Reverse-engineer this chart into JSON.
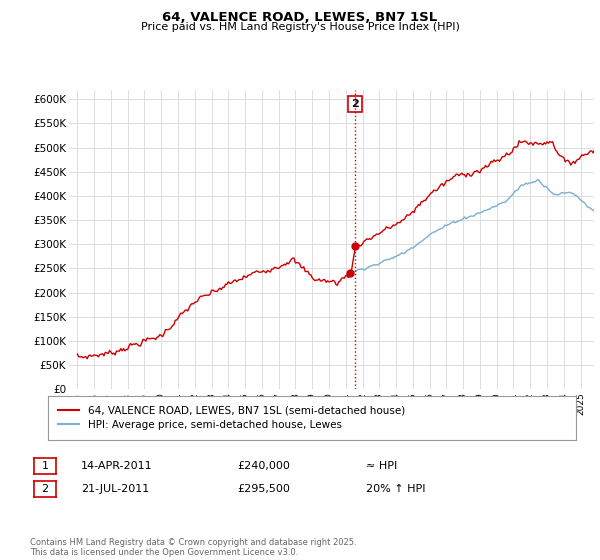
{
  "title": "64, VALENCE ROAD, LEWES, BN7 1SL",
  "subtitle": "Price paid vs. HM Land Registry's House Price Index (HPI)",
  "ylim": [
    0,
    620000
  ],
  "yticks": [
    0,
    50000,
    100000,
    150000,
    200000,
    250000,
    300000,
    350000,
    400000,
    450000,
    500000,
    550000,
    600000
  ],
  "ytick_labels": [
    "£0",
    "£50K",
    "£100K",
    "£150K",
    "£200K",
    "£250K",
    "£300K",
    "£350K",
    "£400K",
    "£450K",
    "£500K",
    "£550K",
    "£600K"
  ],
  "red_color": "#cc0000",
  "blue_color": "#7bafd4",
  "vline_color": "#cc0000",
  "transaction1_x": 2011.28,
  "transaction1_y": 240000,
  "transaction2_x": 2011.55,
  "transaction2_y": 295500,
  "legend_label1": "64, VALENCE ROAD, LEWES, BN7 1SL (semi-detached house)",
  "legend_label2": "HPI: Average price, semi-detached house, Lewes",
  "table_row1": [
    "1",
    "14-APR-2011",
    "£240,000",
    "≈ HPI"
  ],
  "table_row2": [
    "2",
    "21-JUL-2011",
    "£295,500",
    "20% ↑ HPI"
  ],
  "footer": "Contains HM Land Registry data © Crown copyright and database right 2025.\nThis data is licensed under the Open Government Licence v3.0.",
  "background_color": "#ffffff",
  "grid_color": "#dddddd",
  "xlim_start": 1994.5,
  "xlim_end": 2025.8
}
